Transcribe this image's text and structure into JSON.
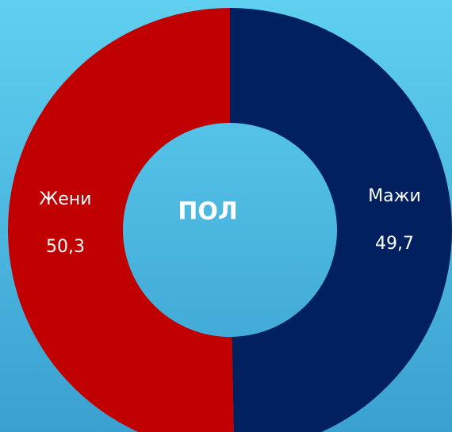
{
  "chart_data": {
    "type": "donut",
    "title": "ПОЛ",
    "categories": [
      "Мажи",
      "Жени"
    ],
    "values": [
      49.7,
      50.3
    ],
    "value_labels": [
      "49,7",
      "50,3"
    ],
    "colors": [
      "#00205f",
      "#c00000"
    ]
  }
}
